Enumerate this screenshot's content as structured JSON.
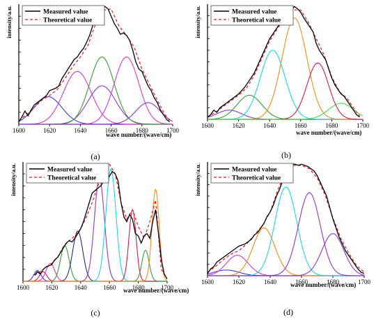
{
  "figure": {
    "panels": [
      "(a)",
      "(b)",
      "(c)",
      "(d)"
    ]
  },
  "colors": {
    "measured": "#000000",
    "theoretical": "#e41a1c",
    "blue": "#3b3bd6",
    "magenta": "#d43ad4",
    "green": "#3a9a3a",
    "purple": "#8a38c8",
    "orange": "#f28c1e",
    "cyan": "#1ed2ea",
    "crimson": "#d4174a",
    "lightgreen": "#4cd64c",
    "navy": "#2a2a78"
  },
  "chart_data": [
    {
      "panel": "(a)",
      "type": "line",
      "xlabel": "wave number/(wave/cm)",
      "ylabel": "intensity/a.u.",
      "xlim": [
        1600,
        1700
      ],
      "ylim": [
        0,
        1.0
      ],
      "xticks": [
        1600,
        1620,
        1640,
        1660,
        1680,
        1700
      ],
      "legend": {
        "placement": "top-left",
        "entries": [
          "Measured value",
          "Theoretical value"
        ]
      },
      "measured": {
        "x": [
          1600,
          1602,
          1604,
          1606,
          1608,
          1610,
          1612,
          1614,
          1616,
          1618,
          1620,
          1622,
          1624,
          1626,
          1628,
          1630,
          1632,
          1634,
          1636,
          1638,
          1640,
          1642,
          1644,
          1646,
          1648,
          1650,
          1652,
          1654,
          1656,
          1658,
          1660,
          1662,
          1664,
          1666,
          1668,
          1670,
          1672,
          1674,
          1676,
          1678,
          1680,
          1682,
          1684,
          1686,
          1688,
          1690,
          1692,
          1694,
          1696,
          1698
        ],
        "y": [
          0.02,
          0.06,
          0.11,
          0.07,
          0.12,
          0.16,
          0.18,
          0.2,
          0.22,
          0.24,
          0.28,
          0.29,
          0.3,
          0.32,
          0.38,
          0.42,
          0.46,
          0.5,
          0.54,
          0.56,
          0.6,
          0.63,
          0.68,
          0.74,
          0.82,
          0.88,
          0.92,
          0.97,
          0.98,
          0.96,
          0.9,
          0.84,
          0.8,
          0.75,
          0.76,
          0.74,
          0.7,
          0.62,
          0.52,
          0.46,
          0.44,
          0.38,
          0.32,
          0.28,
          0.22,
          0.18,
          0.12,
          0.08,
          0.04,
          0.02
        ]
      },
      "theoretical": {
        "x": [
          1600,
          1605,
          1610,
          1615,
          1620,
          1625,
          1630,
          1635,
          1640,
          1645,
          1650,
          1655,
          1660,
          1665,
          1670,
          1675,
          1680,
          1685,
          1690,
          1695,
          1698
        ],
        "y": [
          0.03,
          0.08,
          0.14,
          0.2,
          0.24,
          0.29,
          0.38,
          0.48,
          0.56,
          0.66,
          0.84,
          0.95,
          0.96,
          0.82,
          0.74,
          0.64,
          0.46,
          0.33,
          0.2,
          0.08,
          0.03
        ]
      },
      "components": [
        {
          "color": "blue",
          "center": 1619,
          "height": 0.23,
          "width": 9
        },
        {
          "color": "magenta",
          "center": 1638,
          "height": 0.44,
          "width": 9
        },
        {
          "color": "purple",
          "center": 1654,
          "height": 0.32,
          "width": 9
        },
        {
          "color": "green",
          "center": 1654,
          "height": 0.56,
          "width": 8
        },
        {
          "color": "magenta",
          "center": 1670,
          "height": 0.56,
          "width": 8
        },
        {
          "color": "purple",
          "center": 1684,
          "height": 0.18,
          "width": 8
        }
      ]
    },
    {
      "panel": "(b)",
      "type": "line",
      "xlabel": "wave number/(wave/cm)",
      "ylabel": "intensity/a.u.",
      "xlim": [
        1600,
        1700
      ],
      "ylim": [
        0,
        1.0
      ],
      "xticks": [
        1600,
        1620,
        1640,
        1660,
        1680,
        1700
      ],
      "legend": {
        "placement": "top-left",
        "entries": [
          "Measured value",
          "Theoretical value"
        ]
      },
      "measured": {
        "x": [
          1600,
          1602,
          1604,
          1606,
          1608,
          1610,
          1612,
          1614,
          1616,
          1618,
          1620,
          1622,
          1624,
          1626,
          1628,
          1630,
          1632,
          1634,
          1636,
          1638,
          1640,
          1642,
          1644,
          1646,
          1648,
          1650,
          1652,
          1654,
          1656,
          1658,
          1660,
          1662,
          1664,
          1666,
          1668,
          1670,
          1672,
          1674,
          1676,
          1678,
          1680,
          1682,
          1684,
          1686,
          1688,
          1690,
          1692,
          1694,
          1696,
          1698
        ],
        "y": [
          0.02,
          0.04,
          0.08,
          0.06,
          0.1,
          0.12,
          0.14,
          0.16,
          0.18,
          0.2,
          0.22,
          0.25,
          0.28,
          0.32,
          0.36,
          0.4,
          0.46,
          0.52,
          0.58,
          0.64,
          0.7,
          0.74,
          0.78,
          0.82,
          0.86,
          0.9,
          0.93,
          0.95,
          0.98,
          0.96,
          0.93,
          0.88,
          0.84,
          0.8,
          0.76,
          0.66,
          0.6,
          0.56,
          0.52,
          0.44,
          0.36,
          0.3,
          0.26,
          0.22,
          0.2,
          0.16,
          0.12,
          0.08,
          0.04,
          0.02
        ]
      },
      "theoretical": {
        "x": [
          1600,
          1605,
          1610,
          1615,
          1620,
          1625,
          1630,
          1635,
          1640,
          1645,
          1650,
          1655,
          1660,
          1665,
          1670,
          1675,
          1680,
          1685,
          1690,
          1695,
          1698
        ],
        "y": [
          0.02,
          0.06,
          0.11,
          0.16,
          0.21,
          0.27,
          0.38,
          0.53,
          0.68,
          0.79,
          0.88,
          0.95,
          0.95,
          0.84,
          0.7,
          0.56,
          0.37,
          0.24,
          0.18,
          0.08,
          0.03
        ]
      },
      "components": [
        {
          "color": "purple",
          "center": 1614,
          "height": 0.08,
          "width": 8
        },
        {
          "color": "green",
          "center": 1627,
          "height": 0.21,
          "width": 8
        },
        {
          "color": "cyan",
          "center": 1642,
          "height": 0.6,
          "width": 8
        },
        {
          "color": "orange",
          "center": 1656,
          "height": 0.88,
          "width": 8
        },
        {
          "color": "crimson",
          "center": 1671,
          "height": 0.49,
          "width": 7
        },
        {
          "color": "lightgreen",
          "center": 1686,
          "height": 0.14,
          "width": 8
        }
      ]
    },
    {
      "panel": "(c)",
      "type": "line",
      "xlabel": "wave number/(wave/cm)",
      "ylabel": "intensity/a.u.",
      "xlim": [
        1600,
        1700
      ],
      "ylim": [
        0,
        1.0
      ],
      "xticks": [
        1600,
        1620,
        1640,
        1660,
        1680,
        1700
      ],
      "legend": {
        "placement": "top-left",
        "entries": [
          "Measured value",
          "Theoretical value"
        ]
      },
      "measured": {
        "x": [
          1608,
          1610,
          1612,
          1614,
          1616,
          1618,
          1620,
          1622,
          1624,
          1626,
          1628,
          1630,
          1632,
          1634,
          1636,
          1638,
          1640,
          1642,
          1644,
          1646,
          1648,
          1650,
          1652,
          1654,
          1656,
          1658,
          1660,
          1662,
          1664,
          1666,
          1668,
          1670,
          1672,
          1674,
          1676,
          1678,
          1680,
          1682,
          1684,
          1686,
          1688,
          1690,
          1692,
          1694,
          1696,
          1698,
          1700
        ],
        "y": [
          0.05,
          0.08,
          0.06,
          0.1,
          0.12,
          0.13,
          0.14,
          0.18,
          0.2,
          0.24,
          0.28,
          0.32,
          0.34,
          0.33,
          0.36,
          0.4,
          0.44,
          0.5,
          0.58,
          0.66,
          0.74,
          0.76,
          0.78,
          0.8,
          0.84,
          0.86,
          0.88,
          0.92,
          0.9,
          0.84,
          0.66,
          0.54,
          0.5,
          0.56,
          0.52,
          0.4,
          0.38,
          0.32,
          0.38,
          0.4,
          0.36,
          0.5,
          0.6,
          0.4,
          0.18,
          0.06,
          0.02
        ]
      },
      "theoretical": {
        "x": [
          1608,
          1612,
          1616,
          1620,
          1624,
          1628,
          1632,
          1636,
          1640,
          1644,
          1648,
          1652,
          1656,
          1660,
          1664,
          1668,
          1672,
          1676,
          1680,
          1684,
          1688,
          1692,
          1696,
          1700
        ],
        "y": [
          0.05,
          0.08,
          0.12,
          0.15,
          0.2,
          0.29,
          0.34,
          0.38,
          0.44,
          0.54,
          0.66,
          0.8,
          0.9,
          0.98,
          0.9,
          0.66,
          0.52,
          0.6,
          0.46,
          0.36,
          0.5,
          0.68,
          0.1,
          0.02
        ]
      },
      "components": [
        {
          "color": "blue",
          "center": 1610,
          "height": 0.09,
          "width": 2.5
        },
        {
          "color": "crimson",
          "center": 1614,
          "height": 0.08,
          "width": 2.5
        },
        {
          "color": "magenta",
          "center": 1619,
          "height": 0.15,
          "width": 3
        },
        {
          "color": "green",
          "center": 1629,
          "height": 0.3,
          "width": 3
        },
        {
          "color": "navy",
          "center": 1638,
          "height": 0.42,
          "width": 3.5
        },
        {
          "color": "purple",
          "center": 1653,
          "height": 0.86,
          "width": 3.5
        },
        {
          "color": "cyan",
          "center": 1661,
          "height": 0.94,
          "width": 3.5
        },
        {
          "color": "crimson",
          "center": 1676,
          "height": 0.6,
          "width": 2.5
        },
        {
          "color": "green",
          "center": 1685,
          "height": 0.26,
          "width": 2.5
        },
        {
          "color": "orange",
          "center": 1692,
          "height": 0.77,
          "width": 2.5
        }
      ]
    },
    {
      "panel": "(d)",
      "type": "line",
      "xlabel": "wave number/(wave/cm)",
      "ylabel": "intensity/a.u.",
      "xlim": [
        1600,
        1700
      ],
      "ylim": [
        0,
        1.0
      ],
      "xticks": [
        1600,
        1620,
        1640,
        1660,
        1680,
        1700
      ],
      "legend": {
        "placement": "top-left",
        "entries": [
          "Measured value",
          "Theoretical value"
        ]
      },
      "measured": {
        "x": [
          1600,
          1602,
          1604,
          1606,
          1608,
          1610,
          1612,
          1614,
          1616,
          1618,
          1620,
          1622,
          1624,
          1626,
          1628,
          1630,
          1632,
          1634,
          1636,
          1638,
          1640,
          1642,
          1644,
          1646,
          1648,
          1650,
          1652,
          1654,
          1656,
          1658,
          1660,
          1662,
          1664,
          1666,
          1668,
          1670,
          1672,
          1674,
          1676,
          1678,
          1680,
          1682,
          1684,
          1686,
          1688,
          1690,
          1692,
          1694,
          1696,
          1698,
          1700
        ],
        "y": [
          0.02,
          0.06,
          0.08,
          0.12,
          0.14,
          0.16,
          0.18,
          0.2,
          0.22,
          0.24,
          0.26,
          0.27,
          0.28,
          0.3,
          0.32,
          0.36,
          0.38,
          0.42,
          0.46,
          0.52,
          0.56,
          0.62,
          0.7,
          0.76,
          0.84,
          0.9,
          0.96,
          0.98,
          0.98,
          0.97,
          0.98,
          0.97,
          0.96,
          0.94,
          0.92,
          0.88,
          0.82,
          0.76,
          0.7,
          0.6,
          0.5,
          0.42,
          0.34,
          0.28,
          0.22,
          0.18,
          0.14,
          0.1,
          0.06,
          0.03,
          0.02
        ]
      },
      "theoretical": {
        "x": [
          1600,
          1605,
          1610,
          1615,
          1620,
          1625,
          1630,
          1635,
          1640,
          1645,
          1650,
          1655,
          1660,
          1665,
          1670,
          1675,
          1680,
          1685,
          1690,
          1695,
          1700
        ],
        "y": [
          0.03,
          0.08,
          0.14,
          0.19,
          0.22,
          0.28,
          0.36,
          0.44,
          0.56,
          0.76,
          0.92,
          0.97,
          0.97,
          0.94,
          0.86,
          0.71,
          0.51,
          0.33,
          0.2,
          0.09,
          0.03
        ]
      },
      "components": [
        {
          "color": "blue",
          "center": 1612,
          "height": 0.05,
          "width": 8
        },
        {
          "color": "magenta",
          "center": 1619,
          "height": 0.18,
          "width": 7
        },
        {
          "color": "orange",
          "center": 1636,
          "height": 0.42,
          "width": 7
        },
        {
          "color": "cyan",
          "center": 1650,
          "height": 0.78,
          "width": 7
        },
        {
          "color": "purple",
          "center": 1665,
          "height": 0.73,
          "width": 7
        },
        {
          "color": "purple",
          "center": 1680,
          "height": 0.37,
          "width": 7
        }
      ]
    }
  ]
}
